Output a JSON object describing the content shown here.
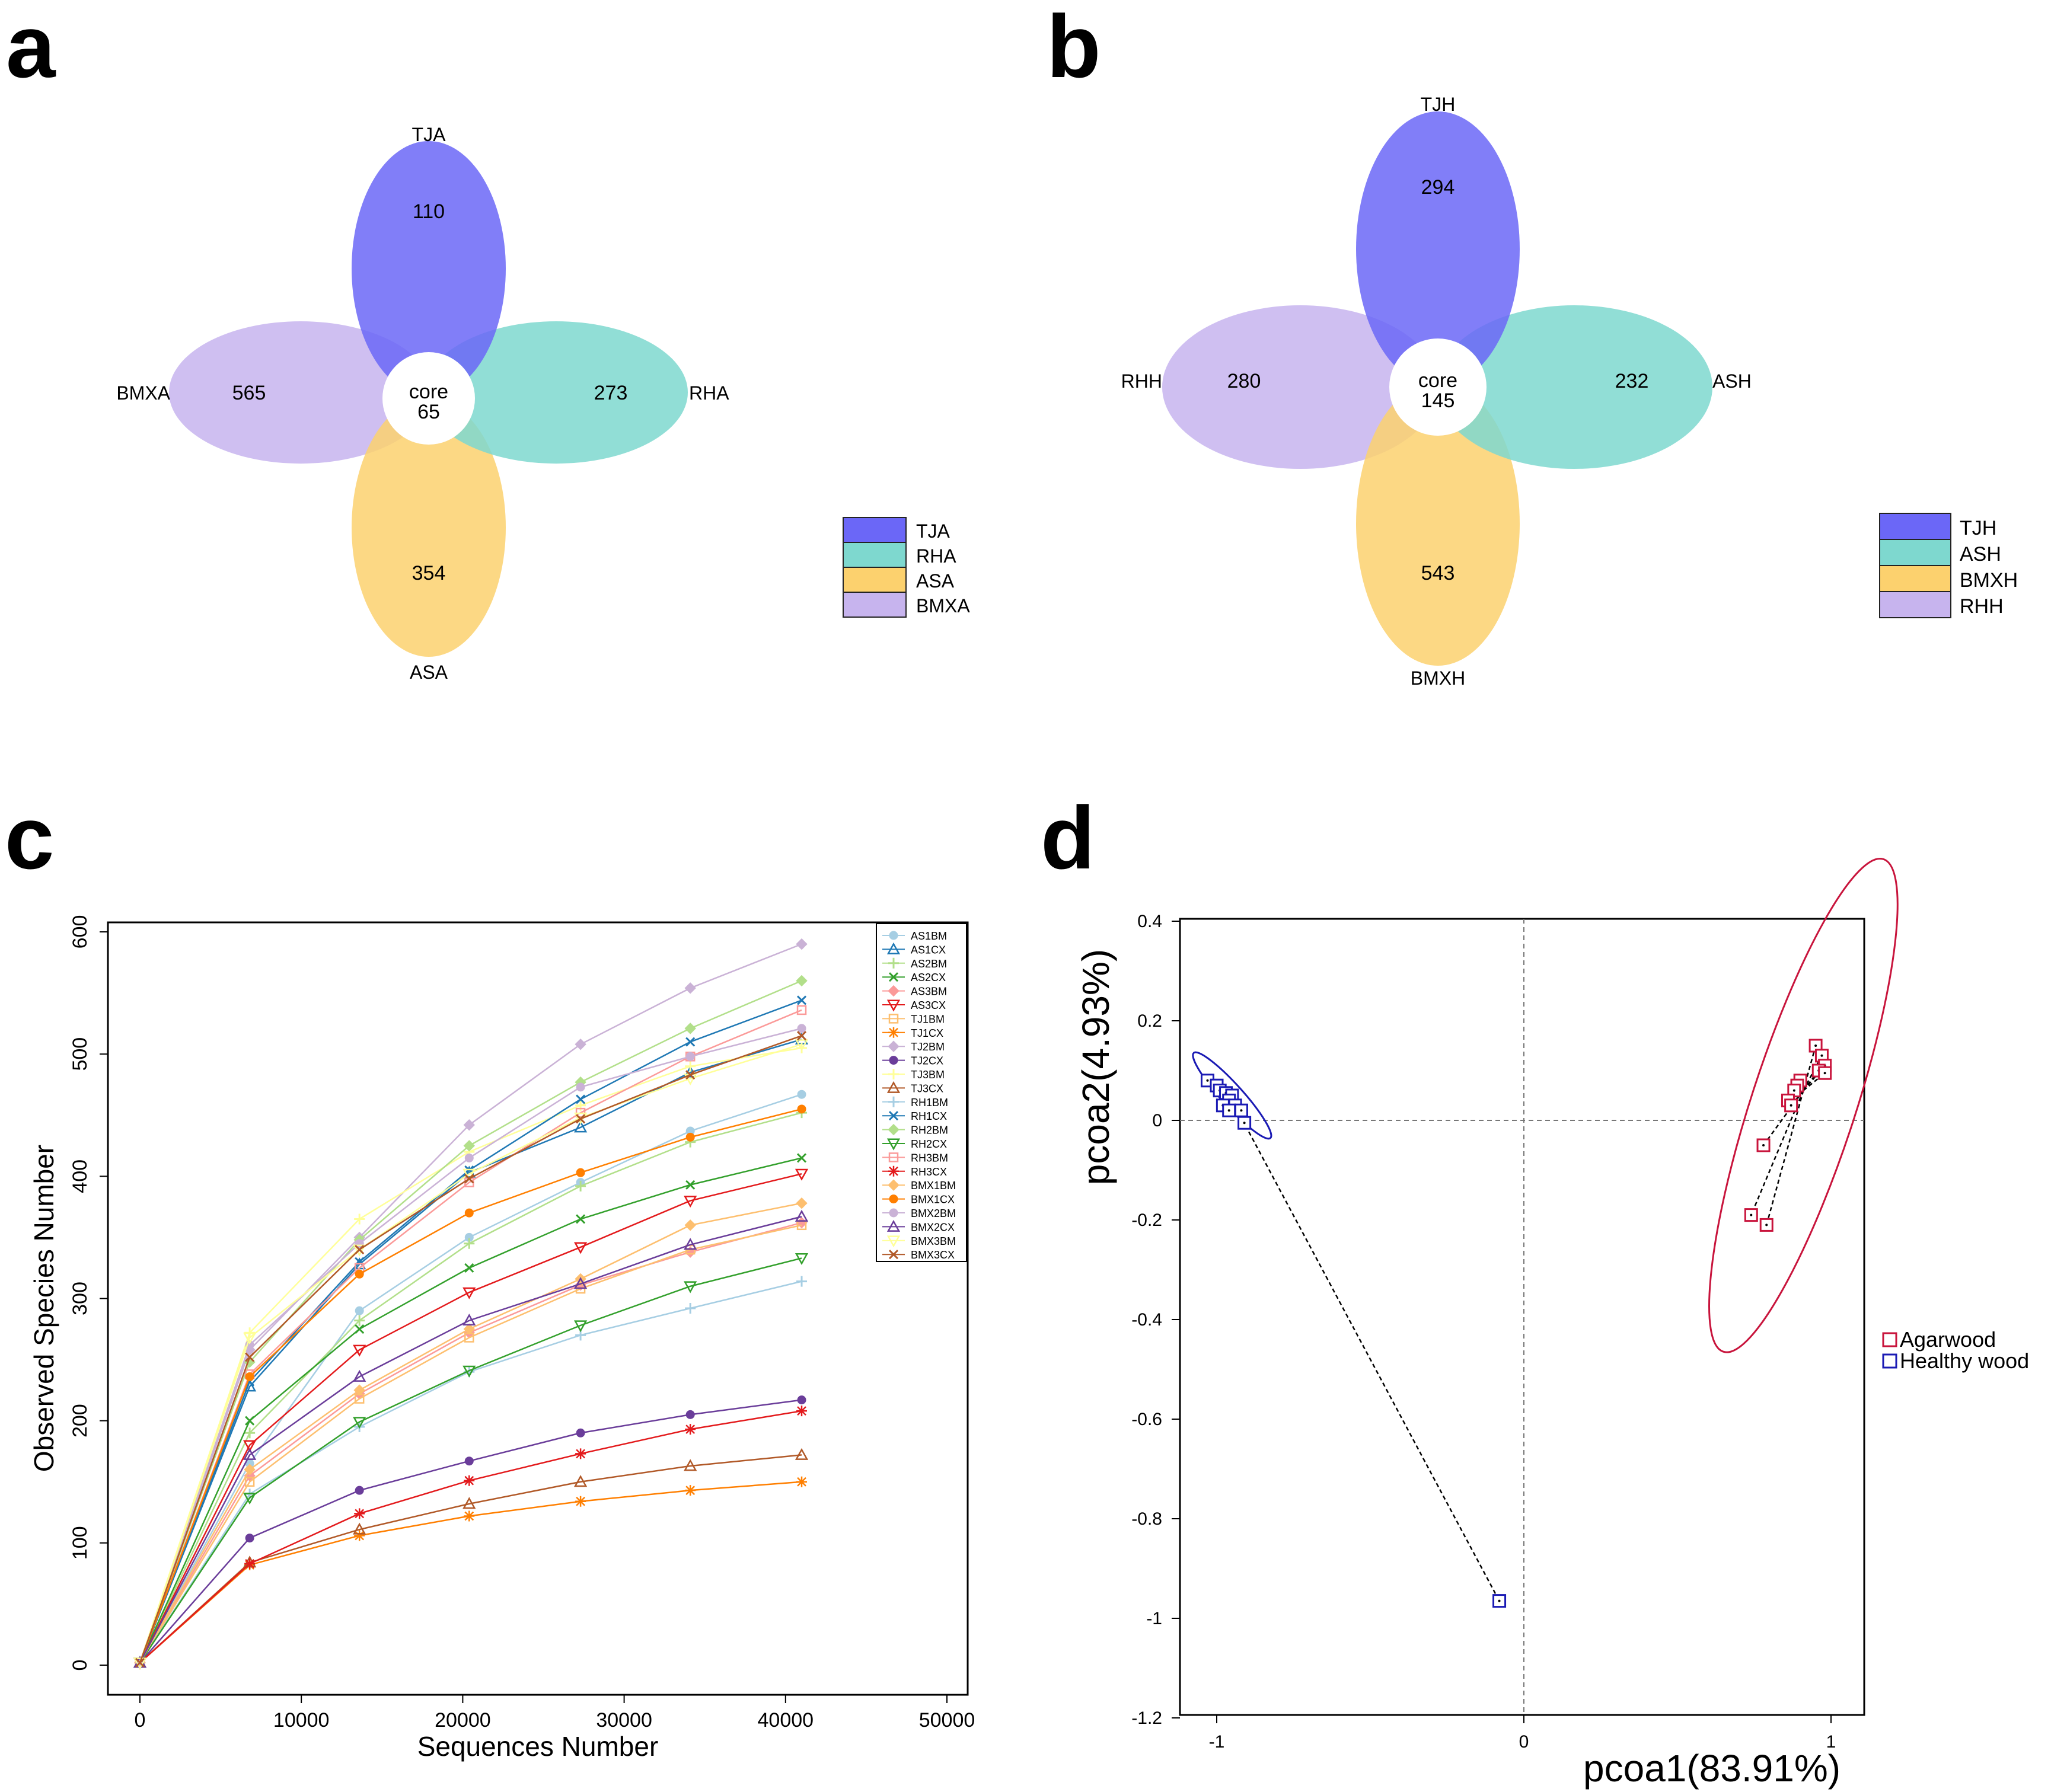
{
  "panels": {
    "a": {
      "letter": "a",
      "sets": [
        {
          "name": "TJA",
          "count": "110",
          "color": "#6B67F7"
        },
        {
          "name": "RHA",
          "count": "273",
          "color": "#7ED8CF"
        },
        {
          "name": "ASA",
          "count": "354",
          "color": "#FCD16E"
        },
        {
          "name": "BMXA",
          "count": "565",
          "color": "#C7B4EE"
        }
      ],
      "core_label": "core",
      "core_count": "65"
    },
    "b": {
      "letter": "b",
      "sets": [
        {
          "name": "TJH",
          "count": "294",
          "color": "#6B67F7"
        },
        {
          "name": "ASH",
          "count": "232",
          "color": "#7ED8CF"
        },
        {
          "name": "BMXH",
          "count": "543",
          "color": "#FCD16E"
        },
        {
          "name": "RHH",
          "count": "280",
          "color": "#C7B4EE"
        }
      ],
      "core_label": "core",
      "core_count": "145"
    },
    "c": {
      "letter": "c"
    },
    "d": {
      "letter": "d"
    }
  },
  "chart_data": [
    {
      "type": "line",
      "panel": "c",
      "xlabel": "Sequences Number",
      "ylabel": "Observed Species Number",
      "xlim": [
        0,
        50000
      ],
      "ylim": [
        0,
        600
      ],
      "x_ticks": [
        "0",
        "10000",
        "20000",
        "30000",
        "40000",
        "50000"
      ],
      "y_ticks": [
        "0",
        "100",
        "200",
        "300",
        "400",
        "500",
        "600"
      ],
      "x": [
        0,
        6800,
        13600,
        20400,
        27300,
        34100,
        41000
      ],
      "legend_position": "top-right",
      "series": [
        {
          "name": "AS1BM",
          "color": "#A6CEE3",
          "marker": "o",
          "values": [
            2,
            165,
            290,
            350,
            395,
            437,
            467
          ]
        },
        {
          "name": "AS1CX",
          "color": "#1F78B4",
          "marker": "^",
          "values": [
            2,
            228,
            328,
            403,
            440,
            485,
            512
          ]
        },
        {
          "name": "AS2BM",
          "color": "#B2DF8A",
          "marker": "+",
          "values": [
            2,
            190,
            282,
            345,
            392,
            428,
            452
          ]
        },
        {
          "name": "AS2CX",
          "color": "#33A02C",
          "marker": "x",
          "values": [
            2,
            200,
            275,
            325,
            365,
            393,
            415
          ]
        },
        {
          "name": "AS3BM",
          "color": "#FB9A99",
          "marker": "d",
          "values": [
            2,
            155,
            222,
            272,
            311,
            338,
            362
          ]
        },
        {
          "name": "AS3CX",
          "color": "#E31A1C",
          "marker": "v",
          "values": [
            2,
            180,
            258,
            305,
            342,
            380,
            402
          ]
        },
        {
          "name": "TJ1BM",
          "color": "#FDBF6F",
          "marker": "s",
          "values": [
            2,
            150,
            218,
            268,
            308,
            340,
            360
          ]
        },
        {
          "name": "TJ1CX",
          "color": "#FF7F00",
          "marker": "*",
          "values": [
            2,
            82,
            106,
            122,
            134,
            143,
            150
          ]
        },
        {
          "name": "TJ2BM",
          "color": "#CAB2D6",
          "marker": "d",
          "values": [
            2,
            258,
            350,
            442,
            508,
            554,
            590
          ]
        },
        {
          "name": "TJ2CX",
          "color": "#6A3D9A",
          "marker": "o",
          "values": [
            2,
            104,
            143,
            167,
            190,
            205,
            217
          ]
        },
        {
          "name": "TJ3BM",
          "color": "#FFFF99",
          "marker": "+",
          "values": [
            2,
            272,
            365,
            420,
            458,
            490,
            505
          ]
        },
        {
          "name": "TJ3CX",
          "color": "#B15928",
          "marker": "^",
          "values": [
            2,
            84,
            111,
            132,
            150,
            163,
            172
          ]
        },
        {
          "name": "RH1BM",
          "color": "#A6CEE3",
          "marker": "+",
          "values": [
            2,
            140,
            195,
            240,
            270,
            292,
            314
          ]
        },
        {
          "name": "RH1CX",
          "color": "#1F78B4",
          "marker": "x",
          "values": [
            2,
            232,
            330,
            405,
            463,
            510,
            544
          ]
        },
        {
          "name": "RH2BM",
          "color": "#B2DF8A",
          "marker": "d",
          "values": [
            2,
            248,
            348,
            425,
            477,
            521,
            560
          ]
        },
        {
          "name": "RH2CX",
          "color": "#33A02C",
          "marker": "v",
          "values": [
            2,
            137,
            199,
            241,
            278,
            310,
            333
          ]
        },
        {
          "name": "RH3BM",
          "color": "#FB9A99",
          "marker": "s",
          "values": [
            2,
            238,
            325,
            395,
            452,
            498,
            536
          ]
        },
        {
          "name": "RH3CX",
          "color": "#E31A1C",
          "marker": "*",
          "values": [
            2,
            83,
            124,
            151,
            173,
            193,
            208
          ]
        },
        {
          "name": "BMX1BM",
          "color": "#FDBF6F",
          "marker": "d",
          "values": [
            2,
            160,
            225,
            275,
            316,
            360,
            378
          ]
        },
        {
          "name": "BMX1CX",
          "color": "#FF7F00",
          "marker": "o",
          "values": [
            2,
            236,
            320,
            370,
            403,
            432,
            455
          ]
        },
        {
          "name": "BMX2BM",
          "color": "#CAB2D6",
          "marker": "o",
          "values": [
            2,
            262,
            345,
            415,
            473,
            498,
            521
          ]
        },
        {
          "name": "BMX2CX",
          "color": "#6A3D9A",
          "marker": "^",
          "values": [
            2,
            172,
            236,
            282,
            312,
            344,
            367
          ]
        },
        {
          "name": "BMX3BM",
          "color": "#FFFF99",
          "marker": "v",
          "values": [
            2,
            268,
            340,
            402,
            448,
            480,
            508
          ]
        },
        {
          "name": "BMX3CX",
          "color": "#B15928",
          "marker": "x",
          "values": [
            2,
            252,
            340,
            398,
            447,
            483,
            515
          ]
        }
      ]
    },
    {
      "type": "scatter",
      "panel": "d",
      "xlabel": "pcoa1(83.91%)",
      "ylabel": "pcoa2(4.93%)",
      "xlim": [
        -1.12,
        1.12
      ],
      "ylim": [
        -1.2,
        0.4
      ],
      "x_ticks": [
        -1,
        0,
        1
      ],
      "x_tick_labels": [
        "-1",
        "0",
        "1"
      ],
      "y_ticks": [
        0.4,
        0.2,
        0,
        -0.2,
        -0.4,
        -0.6,
        -0.8,
        -1,
        -1.2
      ],
      "y_tick_labels": [
        "0.4",
        "0.2",
        "0",
        "-0.2",
        "-0.4",
        "-0.6",
        "-0.8",
        "-1",
        "-1.2"
      ],
      "reference_lines": {
        "x": 0,
        "y": 0
      },
      "legend_position": "right",
      "groups": [
        {
          "name": "Agarwood",
          "color": "#C8143C",
          "centroid": [
            0.91,
            0.06
          ],
          "ellipse": {
            "center": [
              0.91,
              0.03
            ],
            "semi_axes_data": [
              0.17,
              0.52
            ],
            "tilt_deg": 18
          },
          "points": [
            [
              0.95,
              0.15
            ],
            [
              0.97,
              0.13
            ],
            [
              0.98,
              0.11
            ],
            [
              0.96,
              0.1
            ],
            [
              0.98,
              0.095
            ],
            [
              0.9,
              0.08
            ],
            [
              0.89,
              0.07
            ],
            [
              0.88,
              0.06
            ],
            [
              0.86,
              0.04
            ],
            [
              0.87,
              0.03
            ],
            [
              0.78,
              -0.05
            ],
            [
              0.74,
              -0.19
            ],
            [
              0.79,
              -0.21
            ]
          ]
        },
        {
          "name": "Healthy wood",
          "color": "#1A1AB4",
          "centroid": [
            -0.95,
            0.04
          ],
          "ellipse": {
            "center": [
              -0.95,
              0.05
            ],
            "semi_axes_data": [
              0.035,
              0.115
            ],
            "tilt_deg": -42
          },
          "points": [
            [
              -1.03,
              0.08
            ],
            [
              -1.0,
              0.07
            ],
            [
              -0.99,
              0.06
            ],
            [
              -0.97,
              0.055
            ],
            [
              -0.95,
              0.05
            ],
            [
              -0.96,
              0.04
            ],
            [
              -0.98,
              0.03
            ],
            [
              -0.94,
              0.03
            ],
            [
              -0.92,
              0.02
            ],
            [
              -0.96,
              0.02
            ],
            [
              -0.91,
              -0.005
            ],
            [
              -0.08,
              -0.965
            ]
          ]
        }
      ]
    }
  ]
}
